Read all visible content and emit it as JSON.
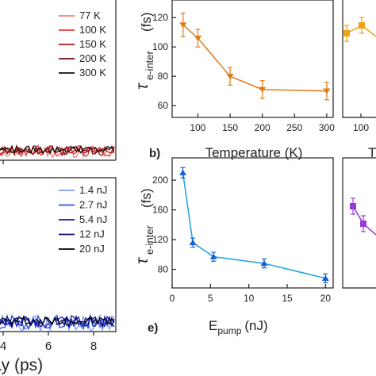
{
  "chart_data": [
    {
      "type": "line",
      "panel": "",
      "xlabel": "",
      "ylabel": "",
      "x_ticks": [],
      "series": [
        {
          "name": "77 K",
          "color": "#f08080"
        },
        {
          "name": "100 K",
          "color": "#e03a3a"
        },
        {
          "name": "150 K",
          "color": "#b01818"
        },
        {
          "name": "200 K",
          "color": "#6e0c0c"
        },
        {
          "name": "300 K",
          "color": "#111111"
        }
      ],
      "legend": "top-right",
      "grid": false
    },
    {
      "type": "line",
      "panel": "b)",
      "xlabel": "Temperature (K)",
      "ylabel_main": "τ",
      "ylabel_sub": "e-inter",
      "ylabel_unit": "(fs)",
      "xlim": [
        60,
        310
      ],
      "ylim": [
        52,
        132
      ],
      "x_ticks": [
        100,
        150,
        200,
        250,
        300
      ],
      "y_ticks": [
        60,
        80,
        100,
        120
      ],
      "series": [
        {
          "name": "",
          "color": "#e07b1a",
          "marker": "triangle-down",
          "x": [
            77,
            100,
            150,
            200,
            300
          ],
          "y": [
            115,
            106,
            80,
            71,
            70
          ],
          "err": [
            8,
            6,
            6,
            6,
            6
          ]
        }
      ],
      "grid": false
    },
    {
      "type": "scatter",
      "panel": "",
      "xlabel": "T",
      "series": [
        {
          "name": "",
          "color": "#f0a20f",
          "marker": "square",
          "values": [
            107,
            113
          ]
        }
      ]
    },
    {
      "type": "line",
      "panel": "",
      "xlabel": "",
      "ylabel": "",
      "x_ticks": [
        4,
        6,
        8
      ],
      "xlabel_partial": "ay (ps)",
      "series": [
        {
          "name": "1.4 nJ",
          "color": "#7f9ef0"
        },
        {
          "name": "2.7 nJ",
          "color": "#2b52e8"
        },
        {
          "name": "5.4 nJ",
          "color": "#1212b8"
        },
        {
          "name": "12 nJ",
          "color": "#0c0c70"
        },
        {
          "name": "20 nJ",
          "color": "#000000"
        }
      ],
      "legend": "top-right",
      "grid": false
    },
    {
      "type": "line",
      "panel": "e)",
      "xlabel_main": "E",
      "xlabel_sub": "pump",
      "xlabel_unit": "(nJ)",
      "ylabel_main": "τ",
      "ylabel_sub": "e-inter",
      "ylabel_unit": "(fs)",
      "xlim": [
        0,
        21
      ],
      "ylim": [
        55,
        230
      ],
      "x_ticks": [
        0,
        5,
        10,
        15,
        20
      ],
      "y_ticks": [
        80,
        120,
        160,
        200
      ],
      "series": [
        {
          "name": "",
          "color": "#1ea0dc",
          "marker_color": "#1560d0",
          "marker": "triangle-up",
          "x": [
            1.4,
            2.7,
            5.4,
            12,
            20
          ],
          "y": [
            210,
            116,
            97,
            88,
            68
          ],
          "err": [
            7,
            6,
            6,
            6,
            6
          ]
        }
      ],
      "grid": false
    },
    {
      "type": "scatter",
      "panel": "",
      "series": [
        {
          "name": "",
          "color": "#9b3bd4",
          "marker": "square",
          "values": [
            183,
            153
          ]
        }
      ]
    }
  ]
}
